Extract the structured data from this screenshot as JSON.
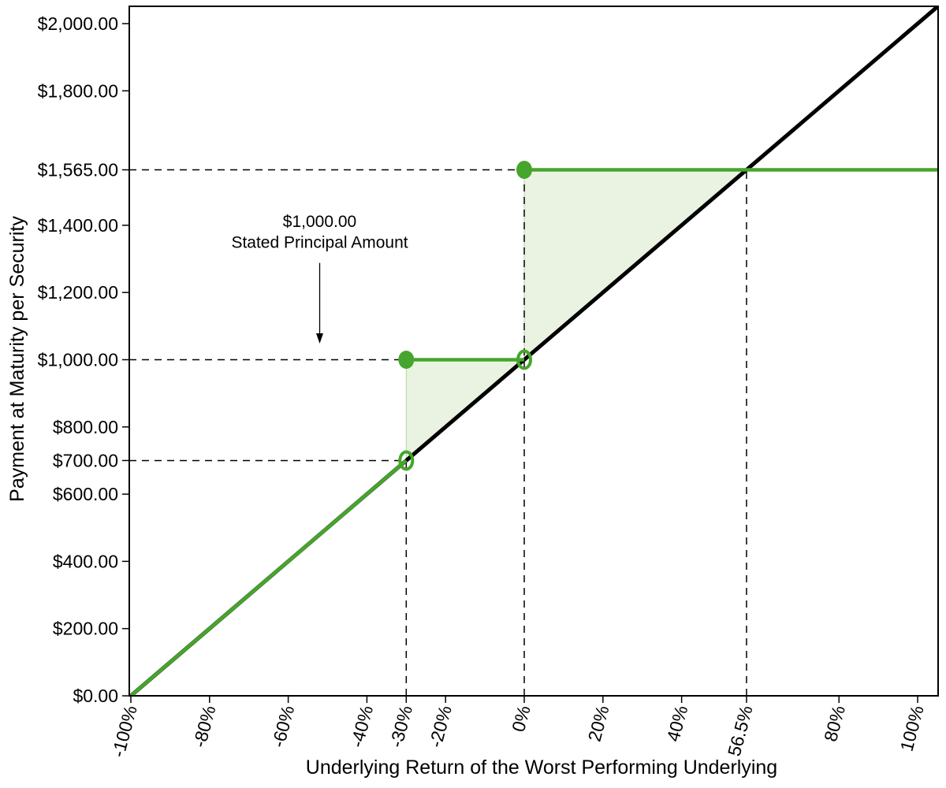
{
  "figure": {
    "background": "#ffffff",
    "plot_border_color": "#000000"
  },
  "chart_data": {
    "type": "line",
    "title": "",
    "xlabel": "Underlying Return of the Worst Performing Underlying",
    "ylabel": "Payment at Maturity per Security",
    "xlim": [
      -100.4,
      105.2
    ],
    "ylim": [
      0,
      2051.5
    ],
    "grid": false,
    "legend": "none",
    "x_ticks": [
      {
        "value": -100,
        "label": "-100%"
      },
      {
        "value": -80,
        "label": "-80%"
      },
      {
        "value": -60,
        "label": "-60%"
      },
      {
        "value": -40,
        "label": "-40%"
      },
      {
        "value": -30,
        "label": "-30%"
      },
      {
        "value": -20,
        "label": "-20%"
      },
      {
        "value": 0,
        "label": "0%"
      },
      {
        "value": 20,
        "label": "20%"
      },
      {
        "value": 40,
        "label": "40%"
      },
      {
        "value": 56.5,
        "label": "56.5%"
      },
      {
        "value": 80,
        "label": "80%"
      },
      {
        "value": 100,
        "label": "100%"
      }
    ],
    "y_ticks": [
      {
        "value": 0,
        "label": "$0.00"
      },
      {
        "value": 200,
        "label": "$200.00"
      },
      {
        "value": 400,
        "label": "$400.00"
      },
      {
        "value": 600,
        "label": "$600.00"
      },
      {
        "value": 700,
        "label": "$700.00"
      },
      {
        "value": 800,
        "label": "$800.00"
      },
      {
        "value": 1000,
        "label": "$1,000.00"
      },
      {
        "value": 1200,
        "label": "$1,200.00"
      },
      {
        "value": 1400,
        "label": "$1,400.00"
      },
      {
        "value": 1565,
        "label": "$1,565.00"
      },
      {
        "value": 1800,
        "label": "$1,800.00"
      },
      {
        "value": 2000,
        "label": "$2,000.00"
      }
    ],
    "series": [
      {
        "name": "underlying-return-reference-line",
        "color": "#000000",
        "width": 5,
        "segments": [
          [
            [
              -100.4,
              -4
            ],
            [
              105.2,
              2052
            ]
          ]
        ]
      },
      {
        "name": "payment-at-maturity-line",
        "color": "#46a52c",
        "width": 4.5,
        "segments": [
          [
            [
              -100.4,
              -4
            ],
            [
              -30,
              700
            ]
          ],
          [
            [
              -30,
              1000
            ],
            [
              0,
              1000
            ]
          ],
          [
            [
              0,
              1565
            ],
            [
              105.2,
              1565
            ]
          ]
        ]
      }
    ],
    "marker_color": "#46a52c",
    "markers": [
      {
        "x": -30,
        "y": 700,
        "style": "open"
      },
      {
        "x": 0,
        "y": 1000,
        "style": "open"
      },
      {
        "x": -30,
        "y": 1000,
        "style": "filled"
      },
      {
        "x": 0,
        "y": 1565,
        "style": "filled"
      }
    ],
    "regions": [
      {
        "points": [
          [
            -30,
            700
          ],
          [
            -30,
            1000
          ],
          [
            0,
            1000
          ]
        ],
        "fill": "#8cba5e",
        "opacity": 0.18,
        "edge": "#9dc675"
      },
      {
        "points": [
          [
            0,
            1000
          ],
          [
            0,
            1565
          ],
          [
            56.5,
            1565
          ]
        ],
        "fill": "#8cba5e",
        "opacity": 0.18,
        "edge": "#9dc675"
      }
    ],
    "guide_color": "#000000",
    "guides": [
      {
        "type": "h",
        "at": 1565,
        "from": -100.4,
        "to": 0
      },
      {
        "type": "h",
        "at": 1000,
        "from": -100.4,
        "to": -30
      },
      {
        "type": "h",
        "at": 700,
        "from": -100.4,
        "to": -30
      },
      {
        "type": "v",
        "at": -30,
        "from": 0,
        "to": 700
      },
      {
        "type": "v",
        "at": 0,
        "from": 0,
        "to": 1565
      },
      {
        "type": "v",
        "at": 56.5,
        "from": 0,
        "to": 1565
      }
    ],
    "annotation": {
      "line1": "$1,000.00",
      "line2": "Stated Principal Amount",
      "x": -52,
      "text_y1": 1395,
      "text_y2": 1333,
      "arrow_from_y": 1288,
      "arrow_to_y": 1048
    }
  }
}
